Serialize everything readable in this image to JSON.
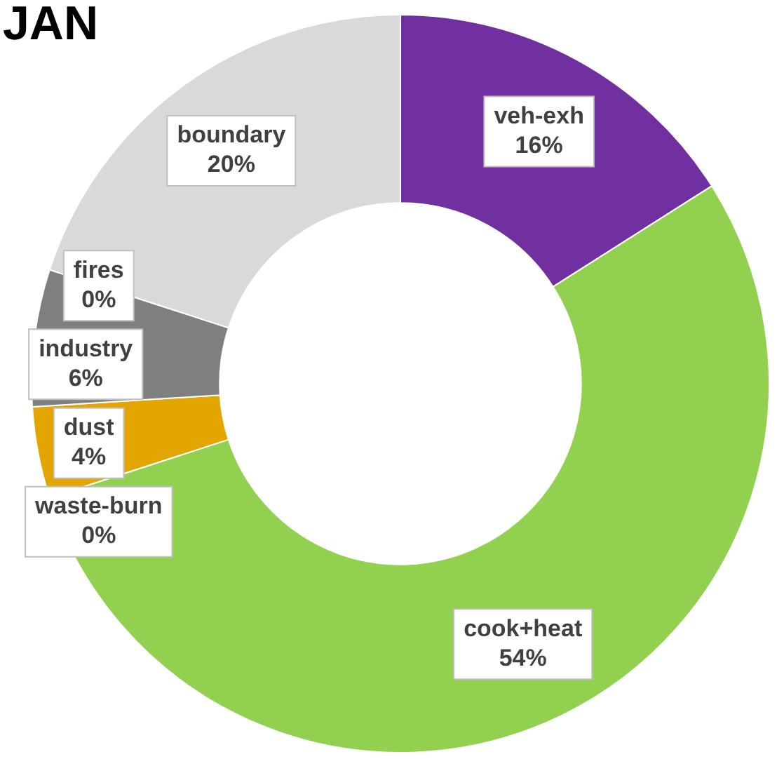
{
  "chart_data": {
    "type": "donut",
    "title": "JAN",
    "categories": [
      "veh-exh",
      "cook+heat",
      "waste-burn",
      "dust",
      "industry",
      "fires",
      "boundary"
    ],
    "values": [
      16,
      54,
      0,
      4,
      6,
      0,
      20
    ],
    "value_labels": [
      "16%",
      "54%",
      "0%",
      "4%",
      "6%",
      "0%",
      "20%"
    ],
    "colors": [
      "#7030a0",
      "#92d050",
      "#c55a11",
      "#e3a600",
      "#7f7f7f",
      "#404040",
      "#d9d9d9"
    ],
    "legend": false
  }
}
